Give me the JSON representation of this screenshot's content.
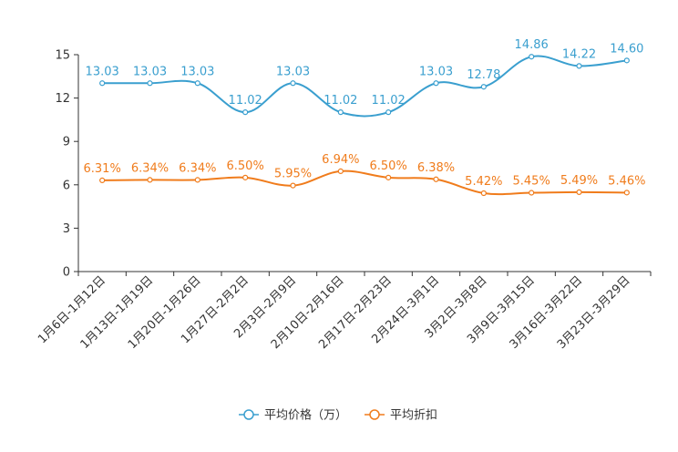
{
  "chart_data": {
    "type": "line",
    "title": "",
    "xlabel": "",
    "ylabel": "",
    "ylim": [
      0,
      15
    ],
    "yticks": [
      0,
      3,
      6,
      9,
      12,
      15
    ],
    "grid": false,
    "legend_position": "bottom-center",
    "categories": [
      "1月6日-1月12日",
      "1月13日-1月19日",
      "1月20日-1月26日",
      "1月27日-2月2日",
      "2月3日-2月9日",
      "2月10日-2月16日",
      "2月17日-2月23日",
      "2月24日-3月1日",
      "3月2日-3月8日",
      "3月9日-3月15日",
      "3月16日-3月22日",
      "3月23日-3月29日"
    ],
    "series": [
      {
        "name": "平均价格（万）",
        "color": "#3a9fcf",
        "values": [
          13.03,
          13.03,
          13.03,
          11.02,
          13.03,
          11.02,
          11.02,
          13.03,
          12.78,
          14.86,
          14.22,
          14.6
        ],
        "labels": [
          "13.03",
          "13.03",
          "13.03",
          "11.02",
          "13.03",
          "11.02",
          "11.02",
          "13.03",
          "12.78",
          "14.86",
          "14.22",
          "14.60"
        ]
      },
      {
        "name": "平均折扣",
        "color": "#f07c1c",
        "values": [
          6.31,
          6.34,
          6.34,
          6.5,
          5.95,
          6.94,
          6.5,
          6.38,
          5.42,
          5.45,
          5.49,
          5.46
        ],
        "labels": [
          "6.31%",
          "6.34%",
          "6.34%",
          "6.50%",
          "5.95%",
          "6.94%",
          "6.50%",
          "6.38%",
          "5.42%",
          "5.45%",
          "5.49%",
          "5.46%"
        ]
      }
    ]
  }
}
